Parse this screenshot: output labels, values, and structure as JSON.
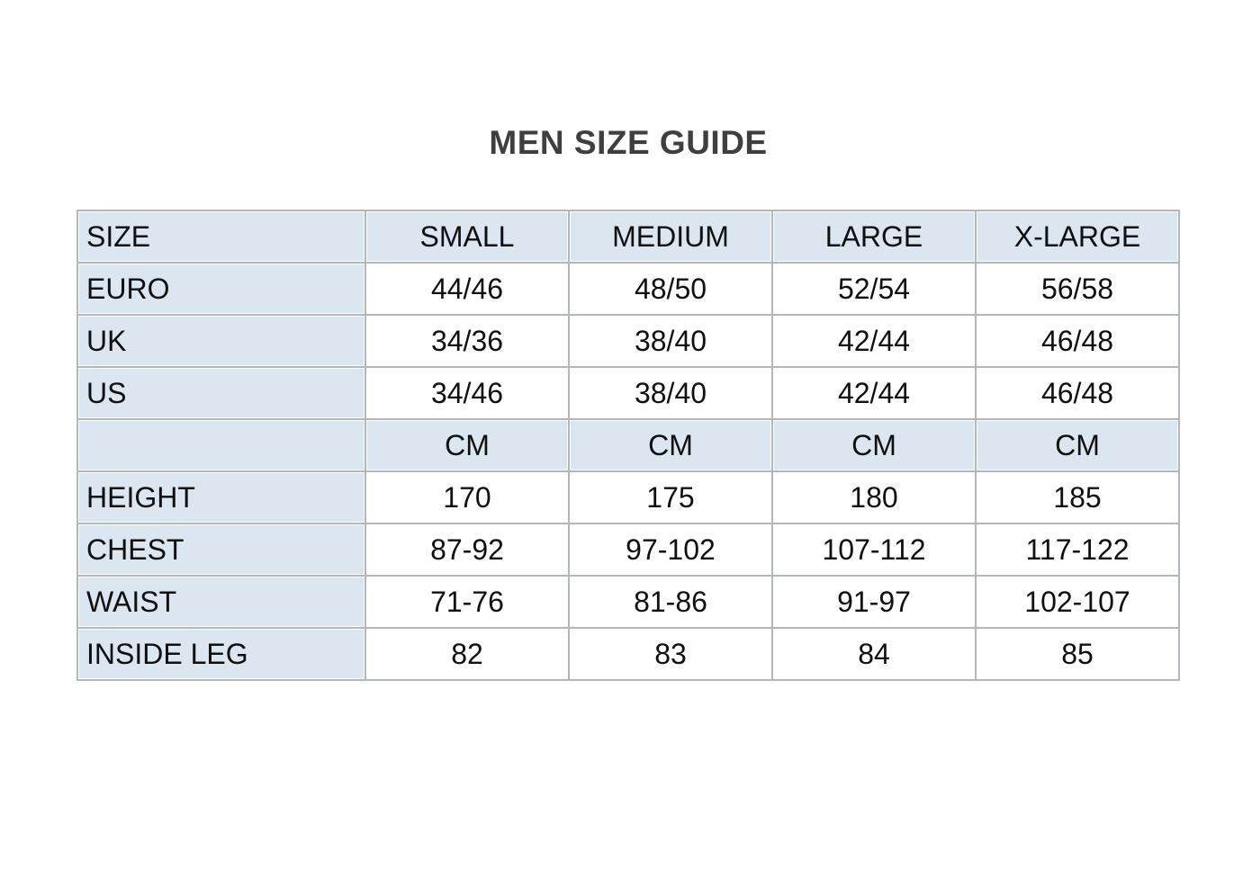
{
  "page": {
    "title": "MEN SIZE GUIDE"
  },
  "colors": {
    "title_text": "#3f3f3f",
    "header_fill": "#dce6f1",
    "label_fill": "#dce6f1",
    "cell_fill": "#ffffff",
    "grid_line": "#b1b7bc",
    "cell_text": "#101010",
    "page_background": "#ffffff"
  },
  "table": {
    "columns": [
      "SIZE",
      "SMALL",
      "MEDIUM",
      "LARGE",
      "X-LARGE"
    ],
    "rows": [
      {
        "type": "data",
        "label": "EURO",
        "values": [
          "44/46",
          "48/50",
          "52/54",
          "56/58"
        ]
      },
      {
        "type": "data",
        "label": "UK",
        "values": [
          "34/36",
          "38/40",
          "42/44",
          "46/48"
        ]
      },
      {
        "type": "data",
        "label": "US",
        "values": [
          "34/46",
          "38/40",
          "42/44",
          "46/48"
        ]
      },
      {
        "type": "unit",
        "label": "",
        "values": [
          "CM",
          "CM",
          "CM",
          "CM"
        ]
      },
      {
        "type": "data",
        "label": "HEIGHT",
        "values": [
          "170",
          "175",
          "180",
          "185"
        ]
      },
      {
        "type": "data",
        "label": "CHEST",
        "values": [
          "87-92",
          "97-102",
          "107-112",
          "117-122"
        ]
      },
      {
        "type": "data",
        "label": "WAIST",
        "values": [
          "71-76",
          "81-86",
          "91-97",
          "102-107"
        ]
      },
      {
        "type": "data",
        "label": "INSIDE LEG",
        "values": [
          "82",
          "83",
          "84",
          "85"
        ]
      }
    ]
  }
}
